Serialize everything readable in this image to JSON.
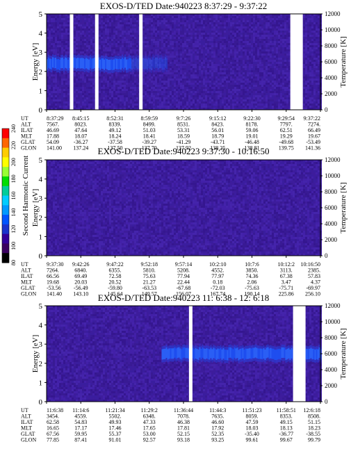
{
  "chart_data": {
    "type": "heatmap",
    "colorbar": {
      "label": "Second Harmonic Current",
      "ticks": [
        "240",
        "220",
        "200",
        "180",
        "160",
        "140",
        "120",
        "100",
        "80"
      ],
      "colors": [
        "#ff0000",
        "#ff6600",
        "#ffcc00",
        "#ffff00",
        "#99ff33",
        "#00dd00",
        "#00cc99",
        "#00ccff",
        "#0099ff",
        "#0055ff",
        "#1a33cc",
        "#330099",
        "#3a0060",
        "#000000"
      ]
    },
    "panels": [
      {
        "title": "EXOS-D/TED   Date:940223   8:37:29 - 9:37:22",
        "ylabel": "Energy [eV]",
        "ylabel_right": "Temperature [K]",
        "ylim": [
          0,
          5
        ],
        "yticks": [
          "0",
          "1",
          "2",
          "3",
          "4",
          "5"
        ],
        "right_lim": [
          0,
          12000
        ],
        "right_ticks": [
          "0",
          "2000",
          "4000",
          "6000",
          "8000",
          "10000",
          "12000"
        ],
        "band": {
          "center": 2.4,
          "width": 0.55,
          "x_end": 0.44
        },
        "gaps": [
          0.085,
          0.177,
          0.338,
          0.89
        ],
        "table": {
          "labels": [
            "UT",
            "ALT",
            "ILAT",
            "MLT",
            "GLAT",
            "GLON"
          ],
          "columns": [
            [
              "8:37:29",
              "7567.",
              "46.69",
              "17.88",
              "54.09",
              "141.00"
            ],
            [
              "8:45:15",
              "8023.",
              "47.64",
              "18.07",
              "-36.27",
              "137.24"
            ],
            [
              "8:52:31",
              "8339.",
              "49.12",
              "18.24",
              "-37.58",
              "137.50"
            ],
            [
              "8:59:59",
              "8499.",
              "51.03",
              "18.41",
              "-39.27",
              "137.70"
            ],
            [
              "9:7:26",
              "8531.",
              "53.31",
              "18.59",
              "-41.29",
              "137.92"
            ],
            [
              "9:15:12",
              "8423.",
              "56.01",
              "18.79",
              "-43.71",
              "138.25"
            ],
            [
              "9:22:30",
              "8178.",
              "59.06",
              "19.01",
              "-46.48",
              "138.81"
            ],
            [
              "9:29:54",
              "7797.",
              "62.51",
              "19.29",
              "-49.68",
              "139.75"
            ],
            [
              "9:37:22",
              "7274.",
              "66.49",
              "19.67",
              "-53.49",
              "141.36"
            ]
          ]
        }
      },
      {
        "title": "EXOS-D/TED   Date:940223   9:37:30 - 10:16:50",
        "ylabel": "Energy [eV]",
        "ylabel_right": "Temperature [K]",
        "ylim": [
          0,
          5
        ],
        "yticks": [
          "0",
          "1",
          "2",
          "3",
          "4",
          "5"
        ],
        "right_lim": [
          0,
          12000
        ],
        "right_ticks": [
          "0",
          "2000",
          "4000",
          "6000",
          "8000",
          "10000",
          "12000"
        ],
        "band": null,
        "gaps": [],
        "table": {
          "labels": [
            "UT",
            "ALT",
            "ILAT",
            "MLT",
            "GLAT",
            "GLON"
          ],
          "columns": [
            [
              "9:37:30",
              "7264.",
              "66.56",
              "19.68",
              "-53.56",
              "141.40"
            ],
            [
              "9:42:26",
              "6840.",
              "69.49",
              "20.03",
              "-56.49",
              "143.10"
            ],
            [
              "9:47:22",
              "6355.",
              "72.58",
              "20.52",
              "-59.80",
              "145.64"
            ],
            [
              "9:52:18",
              "5810.",
              "75.63",
              "21.27",
              "-63.53",
              "149.57"
            ],
            [
              "9:57:14",
              "5208.",
              "77.94",
              "22.44",
              "-67.68",
              "156.07"
            ],
            [
              "10:2:10",
              "4552.",
              "77.97",
              "0.18",
              "-72.03",
              "167.74"
            ],
            [
              "10:7:6",
              "3850.",
              "74.36",
              "2.06",
              "-75.63",
              "190.14"
            ],
            [
              "10:12:2",
              "3113.",
              "67.38",
              "3.47",
              "-75.71",
              "225.86"
            ],
            [
              "10:16:50",
              "2385.",
              "57.83",
              "4.37",
              "-69.97",
              "256.10"
            ]
          ]
        }
      },
      {
        "title": "EXOS-D/TED   Date:940223   11: 6:38 - 12: 6:18",
        "ylabel": "Energy [eV]",
        "ylabel_right": "Temperature [K]",
        "ylim": [
          0,
          5
        ],
        "yticks": [
          "0",
          "1",
          "2",
          "3",
          "4",
          "5"
        ],
        "right_lim": [
          0,
          12000
        ],
        "right_ticks": [
          "0",
          "2000",
          "4000",
          "6000",
          "8000",
          "10000",
          "12000"
        ],
        "band": {
          "center": 2.5,
          "width": 0.55,
          "x_start": 0.42
        },
        "gaps": [
          0.52,
          0.9
        ],
        "table": {
          "labels": [
            "UT",
            "ALT",
            "ILAT",
            "MLT",
            "GLAT",
            "GLON"
          ],
          "columns": [
            [
              "11:6:38",
              "3454.",
              "62.58",
              "16.65",
              "67.56",
              "77.85"
            ],
            [
              "11:14:6",
              "4559.",
              "54.83",
              "17.17",
              "59.95",
              "87.41"
            ],
            [
              "11:21:34",
              "5502.",
              "49.93",
              "17.46",
              "55.37",
              "91.01"
            ],
            [
              "11:29:2",
              "6348.",
              "47.33",
              "17.65",
              "53.00",
              "92.57"
            ],
            [
              "11:36:44",
              "7078.",
              "46.38",
              "17.81",
              "52.15",
              "93.18"
            ],
            [
              "11:44:3",
              "7635.",
              "46.60",
              "17.92",
              "52.35",
              "93.25"
            ],
            [
              "11:51:23",
              "8059.",
              "47.59",
              "18.03",
              "-35.40",
              "99.61"
            ],
            [
              "11:58:51",
              "8353.",
              "49.15",
              "18.13",
              "-36.77",
              "99.67"
            ],
            [
              "12:6:18",
              "8508.",
              "51.15",
              "18.23",
              "-38.55",
              "99.79"
            ]
          ]
        }
      }
    ]
  }
}
